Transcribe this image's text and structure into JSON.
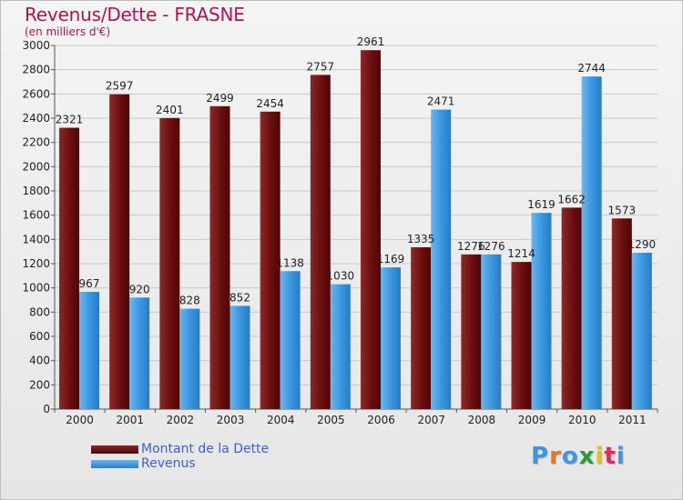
{
  "title": "Revenus/Dette - FRASNE",
  "subtitle": "(en milliers d'€)",
  "logo": "Proxiti",
  "colors": {
    "dette": "#6b0e0e",
    "dette_light": "#8a2a2a",
    "revenus": "#3a97e0",
    "revenus_light": "#6bb6ee",
    "title": "#b4124e",
    "legend_text": "#3a5fd8",
    "logo_letters": [
      "#3a97e0",
      "#e07a1a",
      "#3a97e0",
      "#2a9a3a",
      "#e0c21a",
      "#e02a5a",
      "#3a97e0"
    ]
  },
  "legend": [
    {
      "label": "Montant de la Dette",
      "color": "#6b0e0e"
    },
    {
      "label": "Revenus",
      "color": "#3a97e0"
    }
  ],
  "chart_data": {
    "type": "bar",
    "title": "Revenus/Dette - FRASNE",
    "subtitle": "(en milliers d'€)",
    "categories": [
      "2000",
      "2001",
      "2002",
      "2003",
      "2004",
      "2005",
      "2006",
      "2007",
      "2008",
      "2009",
      "2010",
      "2011"
    ],
    "series": [
      {
        "name": "Montant de la Dette",
        "values": [
          2321,
          2597,
          2401,
          2499,
          2454,
          2757,
          2961,
          1335,
          1276,
          1214,
          1662,
          1573
        ]
      },
      {
        "name": "Revenus",
        "values": [
          967,
          920,
          828,
          852,
          1138,
          1030,
          1169,
          2471,
          1276,
          1619,
          2744,
          1290
        ]
      }
    ],
    "y_ticks": [
      "0",
      "200",
      "400",
      "600",
      "800",
      "1000",
      "1200",
      "1400",
      "1600",
      "1800",
      "2000",
      "2200",
      "2400",
      "2600",
      "2800",
      "3000"
    ],
    "ylim": [
      0,
      3000
    ],
    "grid": true,
    "legend_position": "bottom-left"
  }
}
